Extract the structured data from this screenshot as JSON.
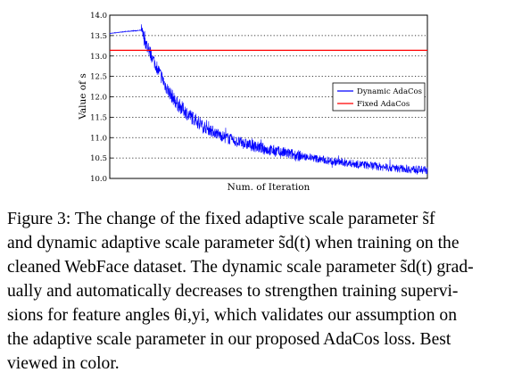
{
  "chart_data": {
    "type": "line",
    "title": "",
    "xlabel": "Num. of Iteration",
    "ylabel": "Value of s",
    "ylim": [
      10.0,
      14.0
    ],
    "yticks": [
      "10.0",
      "10.5",
      "11.0",
      "11.5",
      "12.0",
      "12.5",
      "13.0",
      "13.5",
      "14.0"
    ],
    "xlim": [
      0,
      1
    ],
    "grid": "horizontal dotted",
    "legend": "center-right",
    "series": [
      {
        "name": "Dynamic AdaCos",
        "color": "#0000ff",
        "x": [
          0.0,
          0.05,
          0.1,
          0.1,
          0.12,
          0.15,
          0.18,
          0.21,
          0.25,
          0.3,
          0.35,
          0.4,
          0.5,
          0.6,
          0.7,
          0.8,
          0.9,
          1.0
        ],
        "values": [
          13.55,
          13.6,
          13.63,
          13.6,
          13.2,
          12.7,
          12.2,
          11.85,
          11.55,
          11.25,
          11.05,
          10.9,
          10.7,
          10.55,
          10.42,
          10.33,
          10.25,
          10.2
        ]
      },
      {
        "name": "Fixed AdaCos",
        "color": "#ff0000",
        "x": [
          0.0,
          1.0
        ],
        "values": [
          13.14,
          13.14
        ]
      }
    ]
  },
  "caption": {
    "lines": [
      "Figure 3: The change of the fixed adaptive scale parameter s̃f",
      "and dynamic adaptive scale parameter s̃d(t) when training on the",
      "cleaned WebFace dataset. The dynamic scale parameter s̃d(t) grad-",
      "ually and automatically decreases to strengthen training supervi-",
      "sions for feature angles θi,yi, which validates our assumption on",
      "the adaptive scale parameter in our proposed AdaCos loss. Best",
      "viewed in color."
    ]
  }
}
